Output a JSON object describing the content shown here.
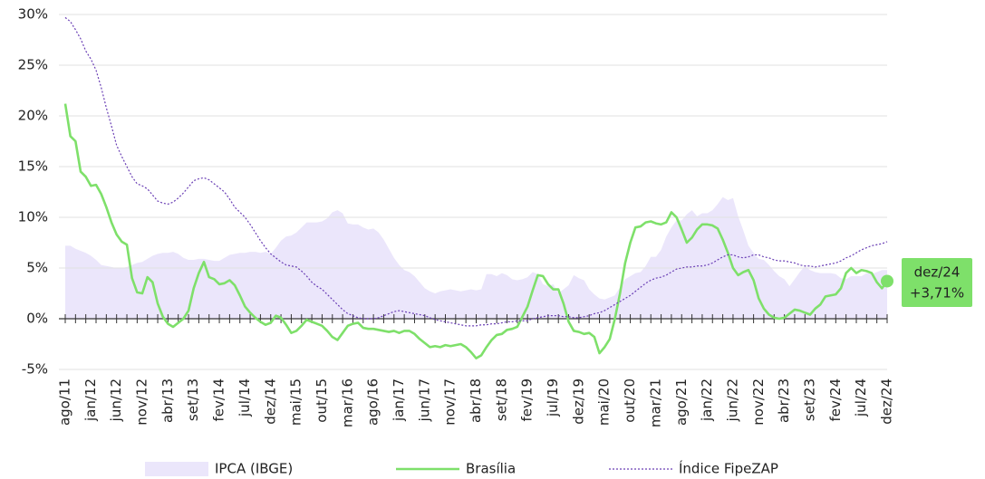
{
  "chart_data": {
    "type": "line",
    "categories": [
      "ago/11",
      null,
      null,
      null,
      null,
      "jan/12",
      null,
      null,
      null,
      null,
      "jun/12",
      null,
      null,
      null,
      null,
      "nov/12",
      null,
      null,
      null,
      null,
      "abr/13",
      null,
      null,
      null,
      null,
      "set/13",
      null,
      null,
      null,
      null,
      "fev/14",
      null,
      null,
      null,
      null,
      "jul/14",
      null,
      null,
      null,
      null,
      "dez/14",
      null,
      null,
      null,
      null,
      "mai/15",
      null,
      null,
      null,
      null,
      "out/15",
      null,
      null,
      null,
      null,
      "mar/16",
      null,
      null,
      null,
      null,
      "ago/16",
      null,
      null,
      null,
      null,
      "jan/17",
      null,
      null,
      null,
      null,
      "jun/17",
      null,
      null,
      null,
      null,
      "nov/17",
      null,
      null,
      null,
      null,
      "abr/18",
      null,
      null,
      null,
      null,
      "set/18",
      null,
      null,
      null,
      null,
      "fev/19",
      null,
      null,
      null,
      null,
      "jul/19",
      null,
      null,
      null,
      null,
      "dez/19",
      null,
      null,
      null,
      null,
      "mai/20",
      null,
      null,
      null,
      null,
      "out/20",
      null,
      null,
      null,
      null,
      "mar/21",
      null,
      null,
      null,
      null,
      "ago/21",
      null,
      null,
      null,
      null,
      "jan/22",
      null,
      null,
      null,
      null,
      "jun/22",
      null,
      null,
      null,
      null,
      "nov/22",
      null,
      null,
      null,
      null,
      "abr/23",
      null,
      null,
      null,
      null,
      "set/23",
      null,
      null,
      null,
      null,
      "fev/24",
      null,
      null,
      null,
      null,
      "jul/24",
      null,
      null,
      null,
      null,
      "dez/24"
    ],
    "series": [
      {
        "name": "IPCA (IBGE)",
        "style": "area",
        "color": "#ebe6fb",
        "values": [
          7.2,
          7.2,
          6.9,
          6.7,
          6.5,
          6.2,
          5.8,
          5.3,
          5.2,
          5.1,
          5.0,
          5.0,
          5.1,
          5.3,
          5.5,
          5.6,
          5.9,
          6.2,
          6.4,
          6.5,
          6.5,
          6.6,
          6.4,
          6.0,
          5.8,
          5.8,
          5.9,
          5.9,
          5.8,
          5.7,
          5.7,
          6.0,
          6.3,
          6.4,
          6.5,
          6.5,
          6.6,
          6.6,
          6.5,
          6.6,
          6.4,
          7.0,
          7.7,
          8.1,
          8.2,
          8.5,
          9.0,
          9.5,
          9.5,
          9.5,
          9.6,
          9.9,
          10.5,
          10.7,
          10.4,
          9.4,
          9.3,
          9.3,
          9.0,
          8.8,
          8.9,
          8.5,
          7.8,
          6.9,
          6.0,
          5.3,
          4.8,
          4.6,
          4.2,
          3.6,
          3.0,
          2.7,
          2.5,
          2.7,
          2.8,
          2.9,
          2.8,
          2.7,
          2.8,
          2.9,
          2.8,
          2.9,
          4.4,
          4.4,
          4.2,
          4.5,
          4.3,
          3.9,
          3.8,
          3.9,
          4.1,
          4.6,
          4.4,
          3.4,
          3.2,
          3.4,
          2.5,
          2.9,
          3.3,
          4.3,
          4.0,
          3.8,
          2.9,
          2.4,
          2.0,
          1.9,
          2.1,
          2.3,
          3.1,
          3.9,
          4.2,
          4.5,
          4.6,
          5.2,
          6.1,
          6.1,
          6.8,
          8.1,
          9.0,
          9.7,
          9.7,
          10.3,
          10.7,
          10.1,
          10.4,
          10.4,
          10.7,
          11.3,
          12.0,
          11.7,
          11.9,
          10.1,
          8.7,
          7.2,
          6.5,
          5.9,
          5.8,
          5.3,
          4.7,
          4.2,
          3.9,
          3.2,
          3.9,
          4.6,
          5.2,
          4.8,
          4.6,
          4.5,
          4.5,
          4.5,
          4.4,
          4.0,
          3.9,
          4.2,
          4.2,
          4.2,
          4.5,
          4.4,
          4.6,
          4.8,
          4.8
        ]
      },
      {
        "name": "Brasília",
        "style": "line",
        "color": "#7ee06a",
        "values": [
          21.2,
          18.0,
          17.5,
          14.5,
          14.0,
          13.1,
          13.2,
          12.3,
          11.0,
          9.5,
          8.3,
          7.6,
          7.3,
          4.0,
          2.6,
          2.5,
          4.1,
          3.6,
          1.5,
          0.2,
          -0.5,
          -0.8,
          -0.4,
          0.0,
          0.8,
          3.0,
          4.5,
          5.6,
          4.1,
          3.9,
          3.4,
          3.5,
          3.8,
          3.3,
          2.3,
          1.2,
          0.6,
          0.1,
          -0.3,
          -0.6,
          -0.4,
          0.3,
          0.1,
          -0.6,
          -1.4,
          -1.2,
          -0.7,
          -0.1,
          -0.3,
          -0.5,
          -0.7,
          -1.2,
          -1.8,
          -2.1,
          -1.4,
          -0.7,
          -0.5,
          -0.4,
          -0.9,
          -1.0,
          -1.0,
          -1.1,
          -1.2,
          -1.3,
          -1.2,
          -1.4,
          -1.2,
          -1.2,
          -1.5,
          -2.0,
          -2.4,
          -2.8,
          -2.7,
          -2.8,
          -2.6,
          -2.7,
          -2.6,
          -2.5,
          -2.8,
          -3.3,
          -3.9,
          -3.6,
          -2.8,
          -2.1,
          -1.6,
          -1.5,
          -1.1,
          -1.0,
          -0.8,
          0.2,
          1.2,
          2.8,
          4.3,
          4.2,
          3.4,
          2.9,
          2.9,
          1.5,
          -0.3,
          -1.2,
          -1.3,
          -1.5,
          -1.4,
          -1.8,
          -3.4,
          -2.8,
          -2.0,
          0.0,
          2.5,
          5.5,
          7.5,
          9.0,
          9.1,
          9.5,
          9.6,
          9.4,
          9.3,
          9.5,
          10.5,
          10.0,
          8.8,
          7.5,
          8.0,
          8.8,
          9.3,
          9.3,
          9.2,
          8.9,
          7.8,
          6.5,
          5.0,
          4.3,
          4.6,
          4.8,
          3.8,
          2.0,
          1.0,
          0.4,
          0.1,
          0.0,
          0.1,
          0.5,
          0.9,
          0.8,
          0.6,
          0.4,
          1.0,
          1.4,
          2.2,
          2.3,
          2.4,
          3.0,
          4.5,
          5.0,
          4.5,
          4.8,
          4.7,
          4.5,
          3.6,
          3.0,
          3.71
        ]
      },
      {
        "name": "Índice FipeZAP",
        "style": "dotted",
        "color": "#6a3fb5",
        "values": [
          29.7,
          29.3,
          28.5,
          27.6,
          26.4,
          25.6,
          24.5,
          22.8,
          20.8,
          19.0,
          17.1,
          16.0,
          15.0,
          14.0,
          13.3,
          13.1,
          12.8,
          12.2,
          11.6,
          11.4,
          11.3,
          11.5,
          11.9,
          12.4,
          13.0,
          13.6,
          13.8,
          13.9,
          13.7,
          13.3,
          12.9,
          12.5,
          11.8,
          11.0,
          10.5,
          10.0,
          9.3,
          8.5,
          7.7,
          7.0,
          6.4,
          6.0,
          5.6,
          5.3,
          5.2,
          5.1,
          4.7,
          4.2,
          3.6,
          3.2,
          2.9,
          2.4,
          1.9,
          1.4,
          0.9,
          0.5,
          0.3,
          0.1,
          0.0,
          0.0,
          0.0,
          0.1,
          0.3,
          0.5,
          0.7,
          0.8,
          0.7,
          0.6,
          0.5,
          0.4,
          0.3,
          0.1,
          -0.1,
          -0.2,
          -0.3,
          -0.4,
          -0.5,
          -0.6,
          -0.7,
          -0.7,
          -0.7,
          -0.6,
          -0.6,
          -0.5,
          -0.5,
          -0.4,
          -0.3,
          -0.3,
          -0.2,
          -0.2,
          -0.2,
          0.0,
          0.1,
          0.2,
          0.3,
          0.3,
          0.3,
          0.2,
          0.2,
          0.1,
          0.1,
          0.2,
          0.3,
          0.5,
          0.6,
          0.8,
          1.1,
          1.4,
          1.7,
          2.0,
          2.3,
          2.7,
          3.1,
          3.5,
          3.8,
          4.0,
          4.1,
          4.3,
          4.6,
          4.9,
          5.0,
          5.1,
          5.1,
          5.2,
          5.2,
          5.3,
          5.5,
          5.8,
          6.1,
          6.3,
          6.3,
          6.1,
          6.0,
          6.1,
          6.3,
          6.3,
          6.1,
          6.0,
          5.8,
          5.7,
          5.7,
          5.6,
          5.5,
          5.3,
          5.2,
          5.2,
          5.1,
          5.2,
          5.3,
          5.4,
          5.5,
          5.7,
          6.0,
          6.2,
          6.5,
          6.8,
          7.0,
          7.2,
          7.3,
          7.4,
          7.6
        ]
      }
    ],
    "ylim": [
      -5,
      30
    ],
    "yticks": [
      {
        "value": -5,
        "label": "-5%"
      },
      {
        "value": 0,
        "label": "0%"
      },
      {
        "value": 5,
        "label": "5%"
      },
      {
        "value": 10,
        "label": "10%"
      },
      {
        "value": 15,
        "label": "15%"
      },
      {
        "value": 20,
        "label": "20%"
      },
      {
        "value": 25,
        "label": "25%"
      },
      {
        "value": 30,
        "label": "30%"
      }
    ],
    "grid": true,
    "annotation": [
      "dez/24",
      "+3,71%"
    ]
  }
}
